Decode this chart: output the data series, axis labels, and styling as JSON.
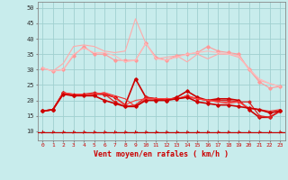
{
  "xlabel": "Vent moyen/en rafales ( km/h )",
  "x": [
    0,
    1,
    2,
    3,
    4,
    5,
    6,
    7,
    8,
    9,
    10,
    11,
    12,
    13,
    14,
    15,
    16,
    17,
    18,
    19,
    20,
    21,
    22,
    23
  ],
  "background_color": "#c8ecec",
  "grid_color": "#a0d0d0",
  "lines_light": [
    {
      "color": "#ff9999",
      "lw": 0.8,
      "marker": "D",
      "ms": 1.8,
      "y": [
        30.5,
        29.5,
        30.0,
        34.5,
        37.5,
        35.0,
        35.0,
        33.0,
        33.0,
        33.0,
        38.5,
        34.0,
        33.0,
        34.5,
        35.0,
        35.5,
        37.5,
        36.0,
        35.5,
        35.0,
        30.0,
        26.0,
        24.0,
        24.5
      ]
    },
    {
      "color": "#ffaaaa",
      "lw": 0.8,
      "marker": null,
      "ms": 0,
      "y": [
        30.5,
        29.5,
        32.0,
        37.5,
        38.0,
        37.5,
        36.0,
        35.5,
        36.0,
        46.5,
        38.5,
        33.5,
        34.0,
        34.5,
        32.5,
        35.0,
        33.5,
        35.0,
        35.0,
        34.0,
        30.5,
        26.5,
        25.5,
        24.5
      ]
    },
    {
      "color": "#ffbbbb",
      "lw": 0.8,
      "marker": null,
      "ms": 0,
      "y": [
        30.5,
        29.5,
        30.0,
        35.0,
        37.0,
        35.5,
        35.5,
        34.5,
        32.5,
        33.0,
        38.5,
        33.5,
        33.0,
        34.0,
        35.0,
        35.5,
        36.0,
        35.5,
        35.0,
        34.5,
        30.0,
        27.0,
        25.5,
        24.5
      ]
    }
  ],
  "lines_dark": [
    {
      "color": "#cc0000",
      "lw": 1.2,
      "marker": "D",
      "ms": 1.8,
      "y": [
        16.5,
        17.0,
        22.5,
        21.5,
        22.0,
        22.0,
        22.0,
        21.0,
        18.5,
        27.0,
        21.0,
        20.5,
        20.0,
        21.0,
        23.0,
        21.0,
        20.0,
        20.5,
        20.5,
        20.0,
        17.0,
        14.5,
        14.5,
        16.5
      ]
    },
    {
      "color": "#dd2222",
      "lw": 0.9,
      "marker": "D",
      "ms": 1.5,
      "y": [
        16.5,
        17.0,
        22.5,
        22.0,
        22.0,
        22.5,
        22.0,
        19.5,
        18.0,
        18.5,
        21.0,
        20.5,
        20.5,
        20.5,
        21.5,
        20.5,
        20.0,
        20.0,
        20.0,
        19.5,
        19.5,
        15.0,
        14.5,
        16.5
      ]
    },
    {
      "color": "#ee3333",
      "lw": 0.8,
      "marker": null,
      "ms": 0,
      "y": [
        16.5,
        17.0,
        22.5,
        21.5,
        22.0,
        22.0,
        22.5,
        21.5,
        20.5,
        18.0,
        20.5,
        20.5,
        20.5,
        20.5,
        21.0,
        20.5,
        20.0,
        19.5,
        19.5,
        19.5,
        17.5,
        17.0,
        16.5,
        17.0
      ]
    },
    {
      "color": "#ff4444",
      "lw": 0.8,
      "marker": null,
      "ms": 0,
      "y": [
        16.5,
        17.0,
        22.5,
        22.0,
        22.0,
        22.0,
        22.5,
        21.0,
        18.5,
        20.0,
        20.5,
        20.5,
        20.5,
        20.5,
        21.5,
        20.5,
        20.0,
        19.5,
        19.0,
        19.5,
        17.5,
        17.0,
        16.0,
        16.5
      ]
    },
    {
      "color": "#cc0000",
      "lw": 1.2,
      "marker": "D",
      "ms": 1.8,
      "y": [
        16.5,
        17.0,
        22.0,
        21.5,
        21.5,
        21.5,
        20.0,
        19.0,
        18.0,
        18.0,
        20.0,
        20.0,
        20.0,
        20.5,
        21.0,
        19.5,
        19.0,
        18.5,
        18.5,
        18.0,
        17.5,
        17.0,
        16.0,
        16.5
      ]
    }
  ],
  "ylim": [
    7,
    52
  ],
  "yticks": [
    10,
    15,
    20,
    25,
    30,
    35,
    40,
    45,
    50
  ],
  "xticks": [
    0,
    1,
    2,
    3,
    4,
    5,
    6,
    7,
    8,
    9,
    10,
    11,
    12,
    13,
    14,
    15,
    16,
    17,
    18,
    19,
    20,
    21,
    22,
    23
  ],
  "arrow_color": "#cc0000",
  "red_line_y": 9.5
}
